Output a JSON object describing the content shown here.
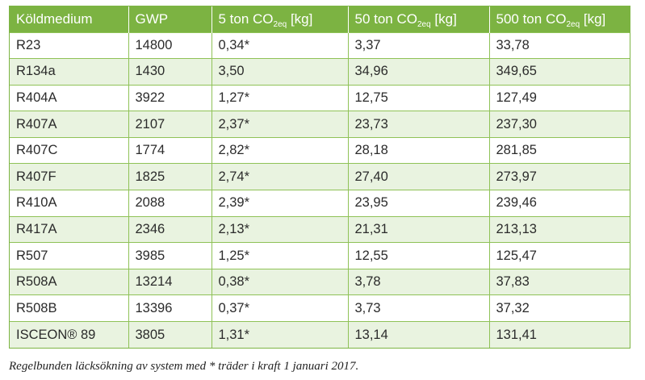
{
  "table": {
    "headers": [
      {
        "text": "Köldmedium",
        "sub": "",
        "suffix": ""
      },
      {
        "text": "GWP",
        "sub": "",
        "suffix": ""
      },
      {
        "text": "5 ton CO",
        "sub": "2eq",
        "suffix": " [kg]"
      },
      {
        "text": "50 ton CO",
        "sub": "2eq",
        "suffix": " [kg]"
      },
      {
        "text": "500 ton CO",
        "sub": "2eq",
        "suffix": " [kg]"
      }
    ],
    "rows": [
      [
        "R23",
        "14800",
        "0,34*",
        "3,37",
        "33,78"
      ],
      [
        "R134a",
        "1430",
        "3,50",
        "34,96",
        "349,65"
      ],
      [
        "R404A",
        "3922",
        "1,27*",
        "12,75",
        "127,49"
      ],
      [
        "R407A",
        "2107",
        "2,37*",
        "23,73",
        "237,30"
      ],
      [
        "R407C",
        "1774",
        "2,82*",
        "28,18",
        "281,85"
      ],
      [
        "R407F",
        "1825",
        "2,74*",
        "27,40",
        "273,97"
      ],
      [
        "R410A",
        "2088",
        "2,39*",
        "23,95",
        "239,46"
      ],
      [
        "R417A",
        "2346",
        "2,13*",
        "21,31",
        "213,13"
      ],
      [
        "R507",
        "3985",
        "1,25*",
        "12,55",
        "125,47"
      ],
      [
        "R508A",
        "13214",
        "0,38*",
        "3,78",
        "37,83"
      ],
      [
        "R508B",
        "13396",
        "0,37*",
        "3,73",
        "37,32"
      ],
      [
        "ISCEON® 89",
        "3805",
        "1,31*",
        "13,14",
        "131,41"
      ]
    ]
  },
  "footnote": "Regelbunden läcksökning av system med * träder i kraft 1 januari 2017.",
  "colors": {
    "header_bg": "#7cb342",
    "header_text": "#ffffff",
    "stripe": "#e9f3e0",
    "grid": "#8fc257"
  }
}
